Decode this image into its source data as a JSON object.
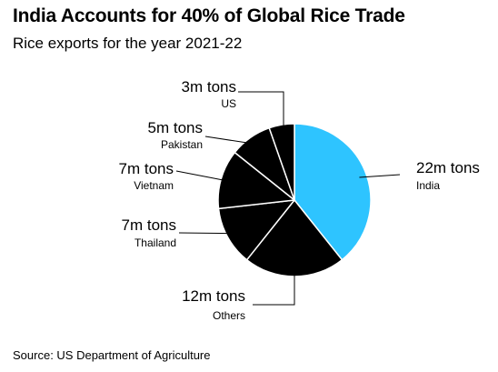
{
  "title": "India Accounts for 40% of Global Rice Trade",
  "subtitle": "Rice exports for the year 2021-22",
  "source": "Source: US Department of Agriculture",
  "colors": {
    "highlight": "#2ec4ff",
    "default": "#000000",
    "separator": "#ffffff",
    "leader": "#000000"
  },
  "chart_data": {
    "type": "pie",
    "title": "India Accounts for 40% of Global Rice Trade",
    "subtitle": "Rice exports for the year 2021-22",
    "unit": "m tons",
    "slices": [
      {
        "name": "India",
        "value": 22,
        "label": "22m tons",
        "color": "#2ec4ff"
      },
      {
        "name": "Others",
        "value": 12,
        "label": "12m tons",
        "color": "#000000"
      },
      {
        "name": "Thailand",
        "value": 7,
        "label": "7m tons",
        "color": "#000000"
      },
      {
        "name": "Vietnam",
        "value": 7,
        "label": "7m tons",
        "color": "#000000"
      },
      {
        "name": "Pakistan",
        "value": 5,
        "label": "5m tons",
        "color": "#000000"
      },
      {
        "name": "US",
        "value": 3,
        "label": "3m tons",
        "color": "#000000"
      }
    ],
    "legend": "none",
    "labels": "outside with leader lines"
  }
}
